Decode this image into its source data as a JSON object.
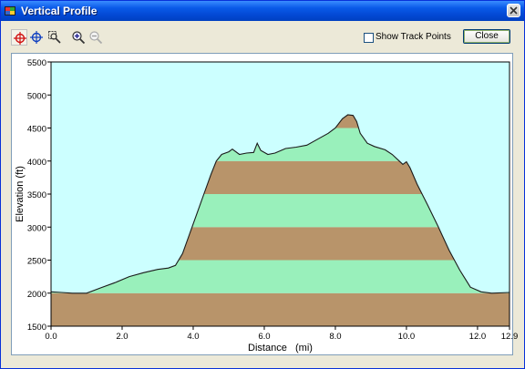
{
  "window": {
    "title": "Vertical Profile"
  },
  "toolbar": {
    "tools": [
      {
        "name": "select-point-tool",
        "icon": "crosshair-red-icon",
        "active": true
      },
      {
        "name": "center-tool",
        "icon": "crosshair-blue-icon",
        "active": false
      },
      {
        "name": "zoom-box-tool",
        "icon": "zoom-box-icon",
        "active": false
      },
      {
        "name": "zoom-in-tool",
        "icon": "zoom-in-icon",
        "active": false
      },
      {
        "name": "zoom-out-tool",
        "icon": "zoom-out-icon",
        "active": false
      }
    ],
    "show_track_points_label": "Show Track Points",
    "show_track_points_checked": false,
    "close_label": "Close"
  },
  "colors": {
    "sky": "#ccffff",
    "band_green": "#99f0bb",
    "band_brown": "#b8946a",
    "profile_line": "#1a1a1a"
  },
  "chart_data": {
    "type": "area",
    "xlabel": "Distance   (mi)",
    "ylabel": "Elevation (ft)",
    "xlim": [
      0,
      12.9
    ],
    "ylim": [
      1500,
      5500
    ],
    "x_ticks": [
      "0.0",
      "2.0",
      "4.0",
      "6.0",
      "8.0",
      "10.0",
      "12.0",
      "12.9"
    ],
    "x_tick_values": [
      0,
      2,
      4,
      6,
      8,
      10,
      12,
      12.9
    ],
    "y_ticks": [
      "1500",
      "2000",
      "2500",
      "3000",
      "3500",
      "4000",
      "4500",
      "5000",
      "5500"
    ],
    "y_tick_values": [
      1500,
      2000,
      2500,
      3000,
      3500,
      4000,
      4500,
      5000,
      5500
    ],
    "band_interval_ft": 500,
    "series": [
      {
        "x": [
          0,
          0.3,
          0.6,
          1.0,
          1.4,
          1.8,
          2.2,
          2.6,
          3.0,
          3.3,
          3.5,
          3.7,
          3.9,
          4.1,
          4.3,
          4.5,
          4.65,
          4.8,
          5.0,
          5.1,
          5.3,
          5.5,
          5.7,
          5.8,
          5.9,
          6.1,
          6.3,
          6.6,
          6.9,
          7.2,
          7.5,
          7.8,
          8.0,
          8.2,
          8.35,
          8.5,
          8.6,
          8.7,
          8.9,
          9.1,
          9.4,
          9.6,
          9.8,
          9.9,
          10.0,
          10.1,
          10.3,
          10.6,
          10.9,
          11.2,
          11.5,
          11.8,
          12.1,
          12.4,
          12.9
        ],
        "y": [
          2020,
          2010,
          2000,
          2000,
          2080,
          2160,
          2250,
          2310,
          2360,
          2380,
          2420,
          2600,
          2900,
          3200,
          3500,
          3800,
          4000,
          4100,
          4140,
          4180,
          4100,
          4120,
          4130,
          4270,
          4160,
          4100,
          4120,
          4190,
          4210,
          4240,
          4330,
          4420,
          4500,
          4640,
          4700,
          4690,
          4600,
          4420,
          4270,
          4220,
          4170,
          4100,
          4000,
          3950,
          3990,
          3900,
          3650,
          3330,
          3000,
          2650,
          2350,
          2090,
          2020,
          2000,
          2010
        ]
      }
    ],
    "grid": false,
    "legend": "none"
  }
}
